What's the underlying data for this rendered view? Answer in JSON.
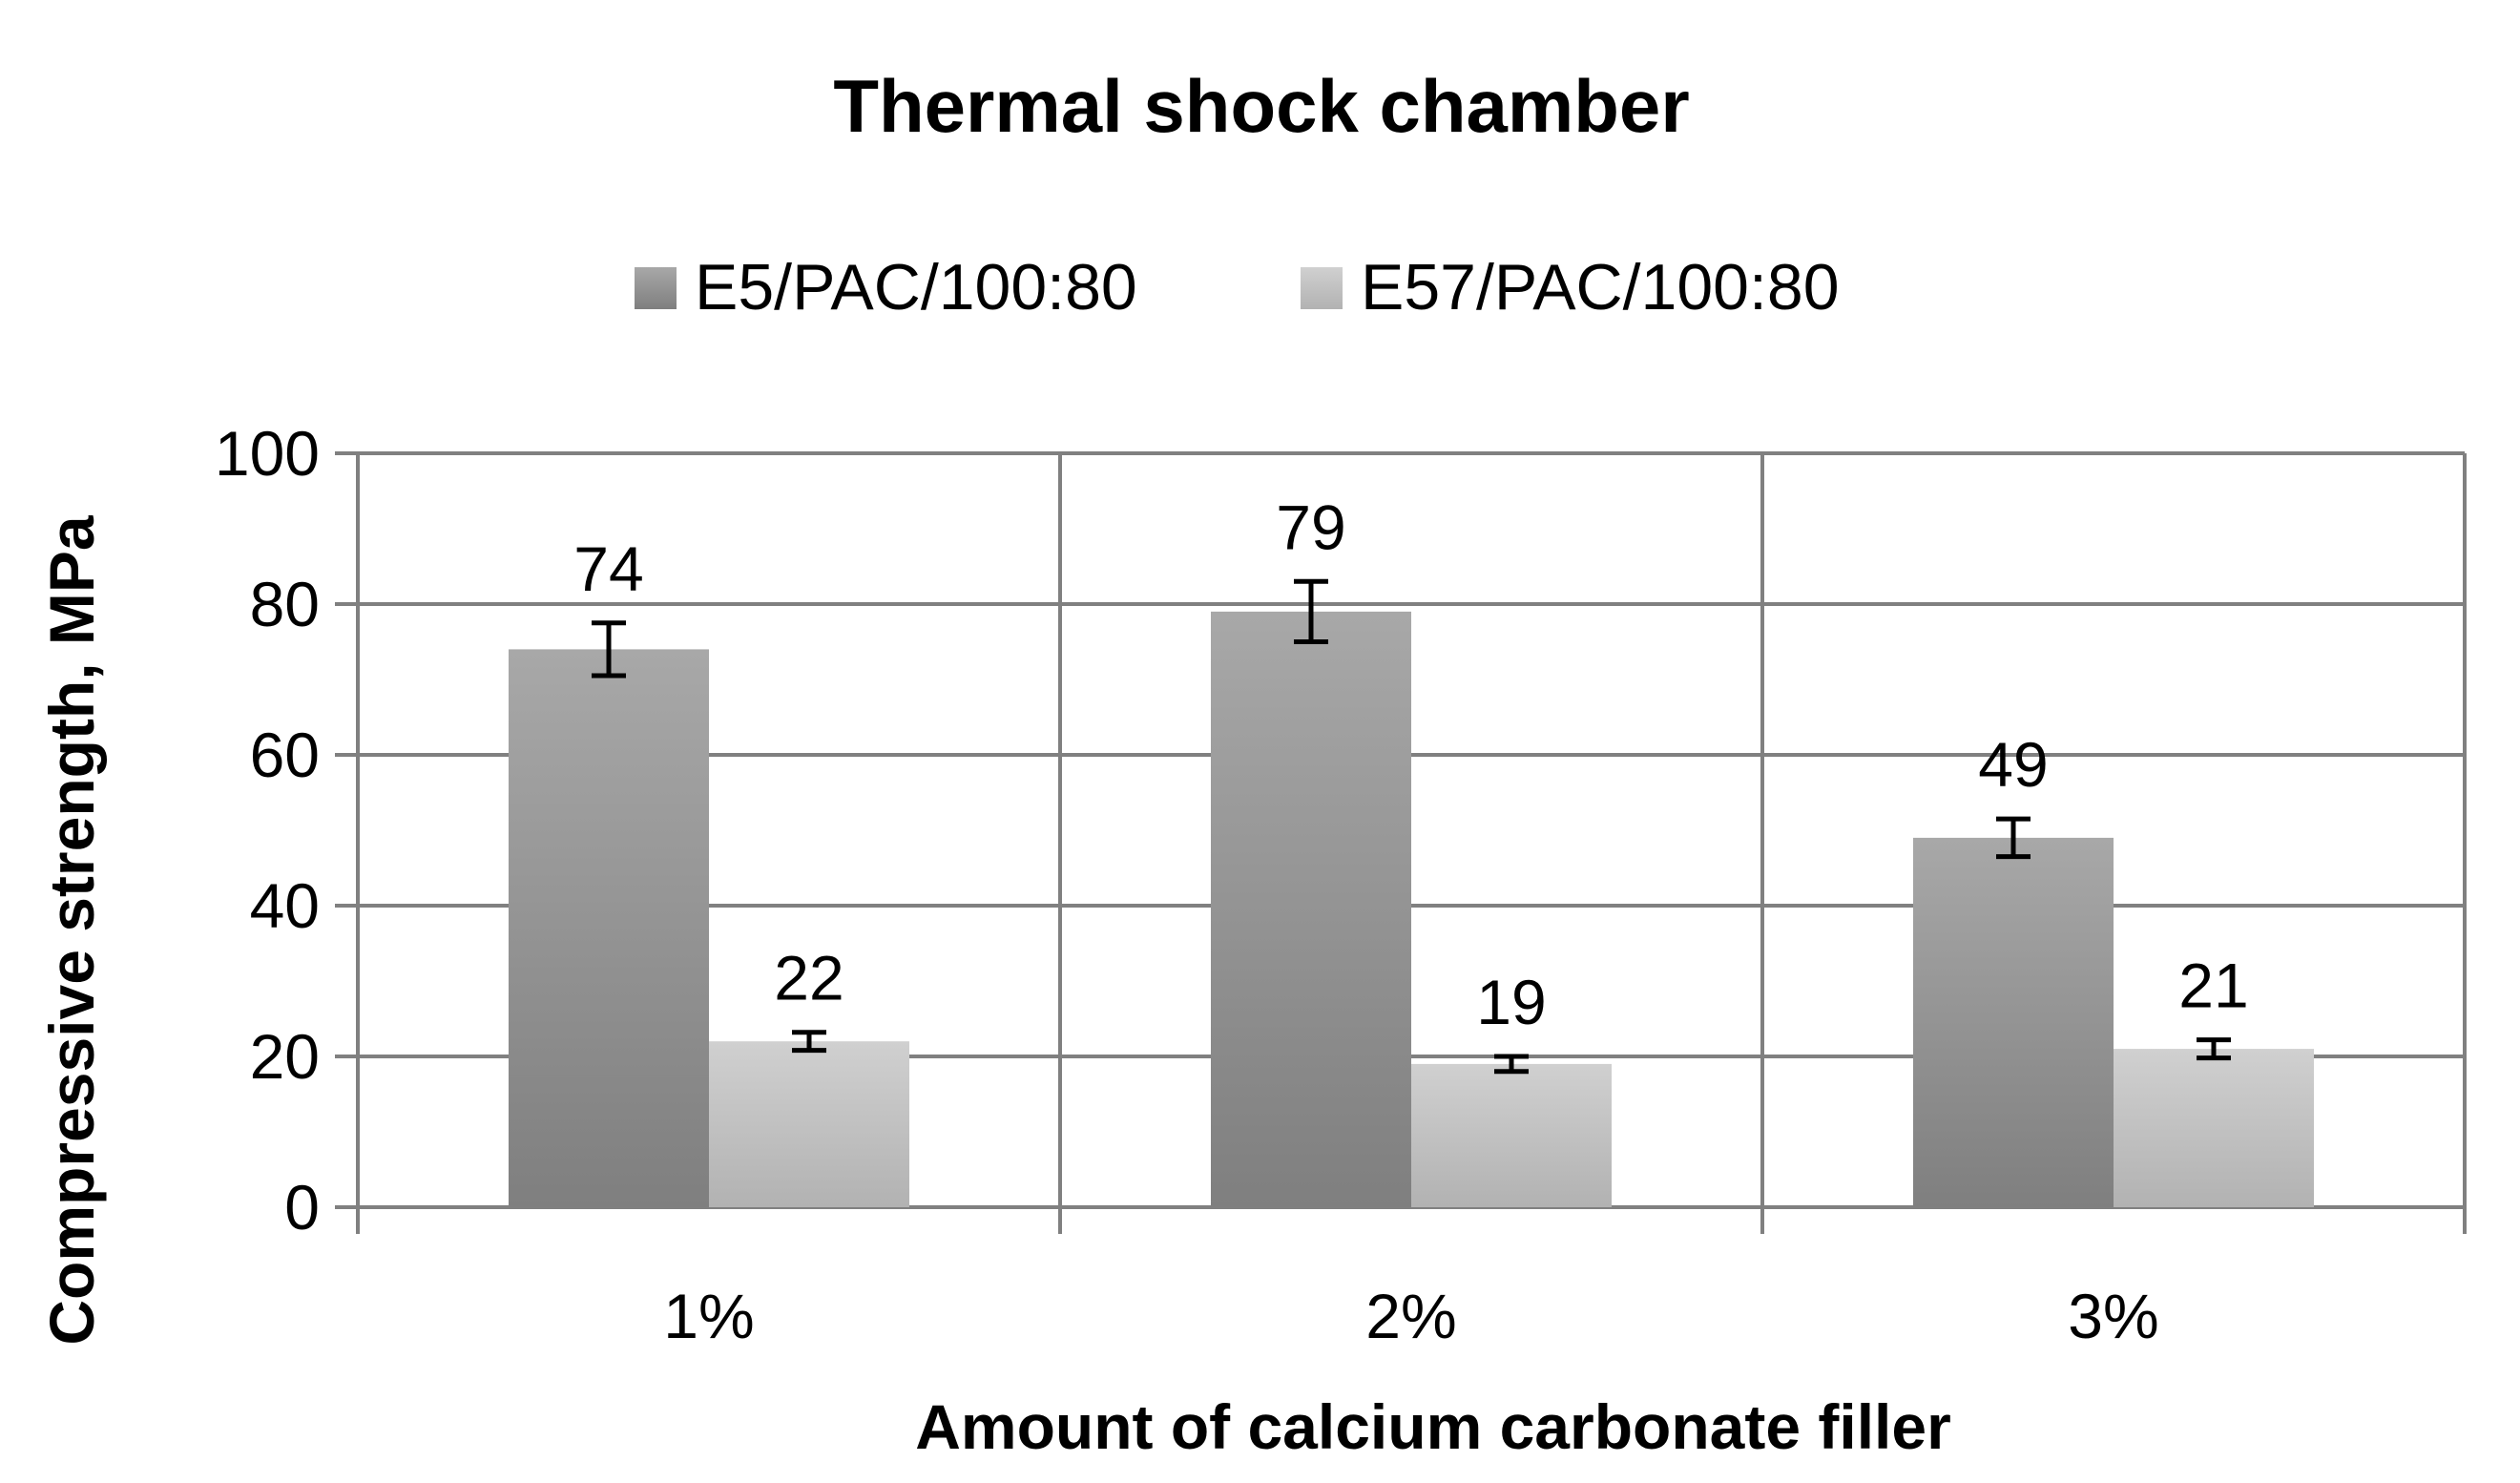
{
  "chart_data": {
    "type": "bar",
    "title": "Thermal shock chamber",
    "xlabel": "Amount of calcium carbonate filler",
    "ylabel": "Compressive strength, MPa",
    "categories": [
      "1%",
      "2%",
      "3%"
    ],
    "ylim": [
      0,
      100
    ],
    "yticks": [
      0,
      20,
      40,
      60,
      80,
      100
    ],
    "grid": true,
    "legend_position": "top",
    "series": [
      {
        "name": "E5/PAC/100:80",
        "values": [
          74,
          79,
          49
        ],
        "errors": [
          3.5,
          4,
          2.5
        ],
        "color_top": "#a8a8a8",
        "color_bottom": "#7f7f7f"
      },
      {
        "name": "E57/PAC/100:80",
        "values": [
          22,
          19,
          21
        ],
        "errors": [
          1.2,
          1,
          1.2
        ],
        "color_top": "#d0d0d0",
        "color_bottom": "#b2b2b2"
      }
    ],
    "data_labels": [
      [
        "74",
        "79",
        "49"
      ],
      [
        "22",
        "19",
        "21"
      ]
    ]
  }
}
